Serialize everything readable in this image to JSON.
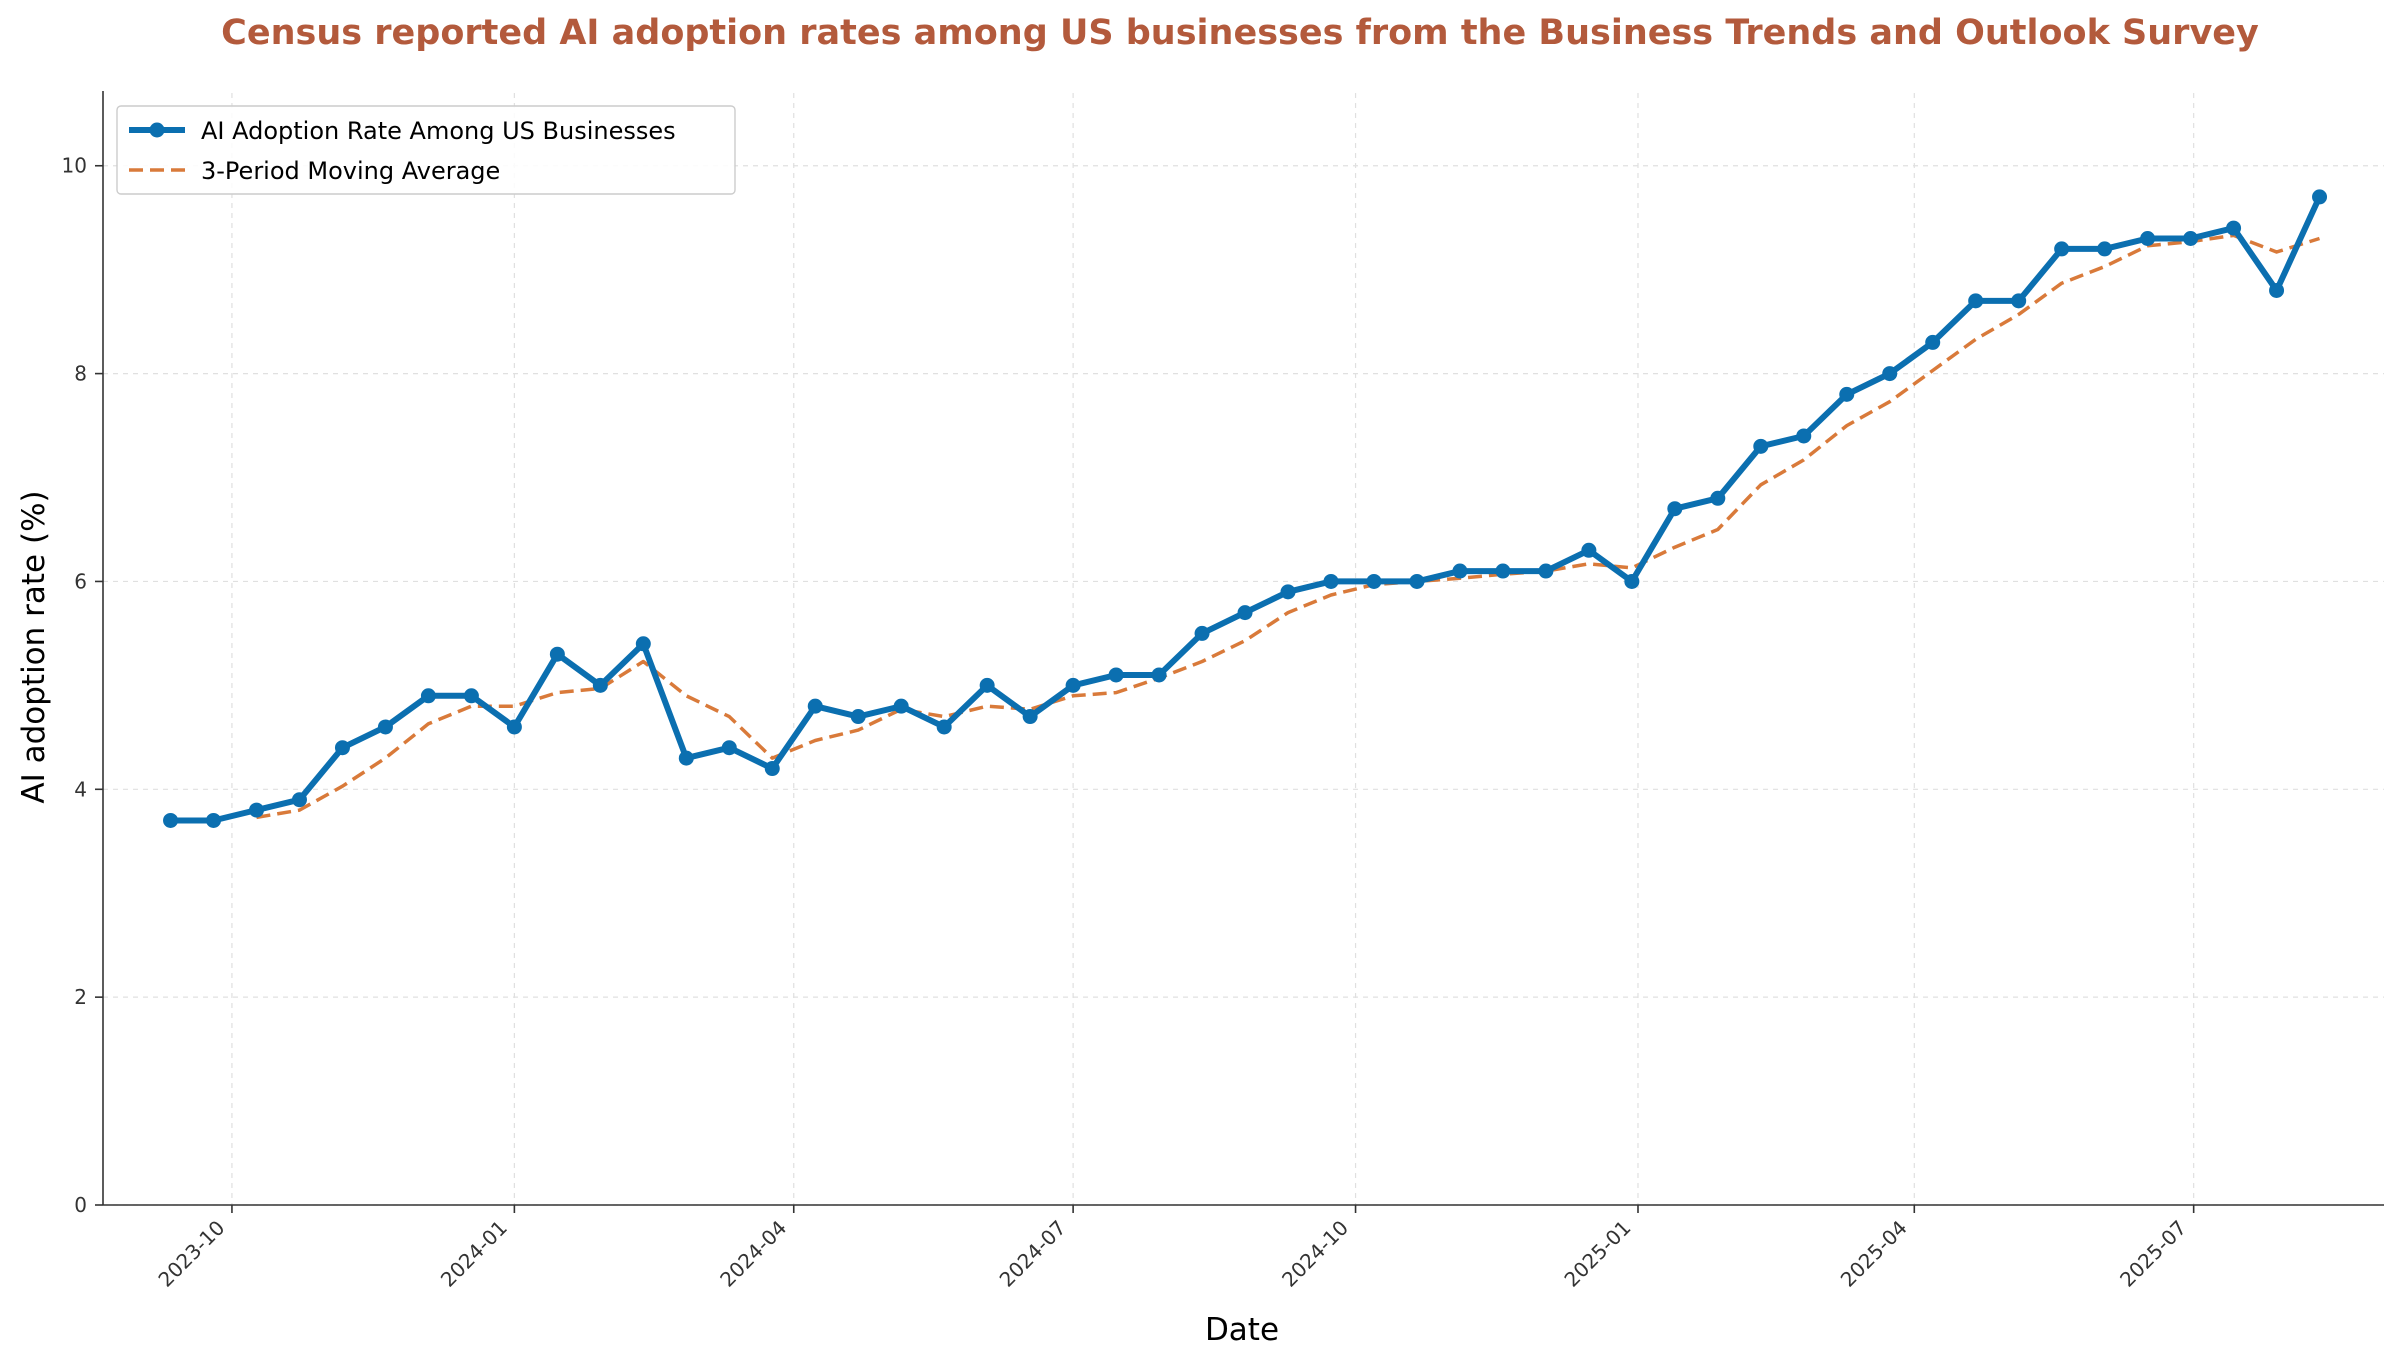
{
  "chart_data": {
    "type": "line",
    "title": "Census reported AI adoption rates among US businesses from the Business Trends and Outlook Survey",
    "xlabel": "Date",
    "ylabel": "AI adoption rate (%)",
    "ylim": [
      0,
      10.7
    ],
    "xlim": [
      "2023-08-20",
      "2025-09-01"
    ],
    "yticks": [
      0,
      2,
      4,
      6,
      8,
      10
    ],
    "xticks": [
      "2023-10",
      "2024-01",
      "2024-04",
      "2024-07",
      "2024-10",
      "2025-01",
      "2025-04",
      "2025-07"
    ],
    "grid": true,
    "legend_position": "top-left",
    "x": [
      "2023-09-11",
      "2023-09-25",
      "2023-10-09",
      "2023-10-23",
      "2023-11-06",
      "2023-11-20",
      "2023-12-04",
      "2023-12-18",
      "2024-01-01",
      "2024-01-15",
      "2024-01-29",
      "2024-02-12",
      "2024-02-26",
      "2024-03-11",
      "2024-03-25",
      "2024-04-08",
      "2024-04-22",
      "2024-05-06",
      "2024-05-20",
      "2024-06-03",
      "2024-06-17",
      "2024-07-01",
      "2024-07-15",
      "2024-07-29",
      "2024-08-12",
      "2024-08-26",
      "2024-09-09",
      "2024-09-23",
      "2024-10-07",
      "2024-10-21",
      "2024-11-04",
      "2024-11-18",
      "2024-12-02",
      "2024-12-16",
      "2024-12-30",
      "2025-01-13",
      "2025-01-27",
      "2025-02-10",
      "2025-02-24",
      "2025-03-10",
      "2025-03-24",
      "2025-04-07",
      "2025-04-21",
      "2025-05-05",
      "2025-05-19",
      "2025-06-02",
      "2025-06-16",
      "2025-06-30",
      "2025-07-14",
      "2025-07-28",
      "2025-08-11"
    ],
    "series": [
      {
        "name": "AI Adoption Rate Among US Businesses",
        "color": "#0b6fb0",
        "style": "solid-markers",
        "values": [
          3.7,
          3.7,
          3.8,
          3.9,
          4.4,
          4.6,
          4.9,
          4.9,
          4.6,
          5.3,
          5.0,
          5.4,
          4.3,
          4.4,
          4.2,
          4.8,
          4.7,
          4.8,
          4.6,
          5.0,
          4.7,
          5.0,
          5.1,
          5.1,
          5.5,
          5.7,
          5.9,
          6.0,
          6.0,
          6.0,
          6.1,
          6.1,
          6.1,
          6.3,
          6.0,
          6.7,
          6.8,
          7.3,
          7.4,
          7.8,
          8.0,
          8.3,
          8.7,
          8.7,
          9.2,
          9.2,
          9.3,
          9.3,
          9.4,
          8.8,
          9.7
        ]
      },
      {
        "name": "3-Period Moving Average",
        "color": "#d97a3a",
        "style": "dashed",
        "values": [
          null,
          null,
          3.73,
          3.8,
          4.03,
          4.3,
          4.63,
          4.8,
          4.8,
          4.93,
          4.97,
          5.23,
          4.9,
          4.7,
          4.3,
          4.47,
          4.57,
          4.77,
          4.7,
          4.8,
          4.77,
          4.9,
          4.93,
          5.07,
          5.23,
          5.43,
          5.7,
          5.87,
          5.97,
          6.0,
          6.03,
          6.07,
          6.1,
          6.17,
          6.13,
          6.33,
          6.5,
          6.93,
          7.17,
          7.5,
          7.73,
          8.03,
          8.33,
          8.57,
          8.87,
          9.03,
          9.23,
          9.27,
          9.33,
          9.17,
          9.3
        ]
      }
    ]
  }
}
